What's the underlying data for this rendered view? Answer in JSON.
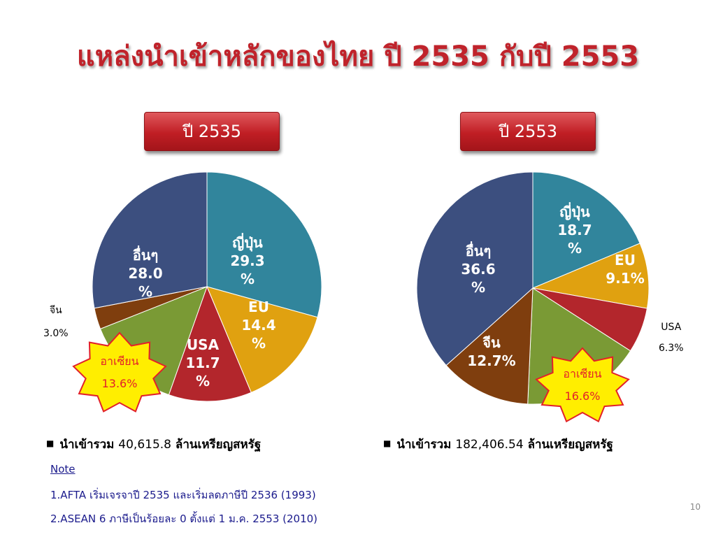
{
  "title": "แหล่งนำเข้าหลักของไทย ปี 2535 กับปี 2553",
  "boxes": {
    "left": "ปี 2535",
    "right": "ปี 2553"
  },
  "totals": {
    "left": {
      "label": "นำเข้ารวม",
      "value": "40,615.8",
      "unit": "ล้านเหรียญสหรัฐ"
    },
    "right": {
      "label": "นำเข้ารวม",
      "value": "182,406.54",
      "unit": "ล้านเหรียญสหรัฐ"
    }
  },
  "notes": {
    "title": "Note",
    "line1": "1.AFTA เริ่มเจรจาปี 2535 และเริ่มลดภาษีปี 2536 (1993)",
    "line2": "2.ASEAN 6 ภาษีเป็นร้อยละ 0 ตั้งแต่ 1 ม.ค. 2553 (2010)"
  },
  "page_number": "10",
  "colors": {
    "japan": "#31859c",
    "eu": "#e0a110",
    "usa": "#b3262c",
    "asean": "#7a9a35",
    "china": "#7f3e0e",
    "others": "#3c4f7f",
    "star_fill": "#ffee00",
    "star_stroke": "#e2202a"
  },
  "chart_data": [
    {
      "type": "pie",
      "year": "ปี 2535",
      "slices": [
        {
          "name": "ญี่ปุ่น",
          "value": 29.3,
          "label": "29.3 %",
          "color_key": "japan"
        },
        {
          "name": "EU",
          "value": 14.4,
          "label": "14.4 %",
          "color_key": "eu"
        },
        {
          "name": "USA",
          "value": 11.7,
          "label": "11.7 %",
          "color_key": "usa"
        },
        {
          "name": "อาเซียน",
          "value": 13.6,
          "label": "13.6%",
          "color_key": "asean"
        },
        {
          "name": "จีน",
          "value": 3.0,
          "label": "3.0%",
          "color_key": "china"
        },
        {
          "name": "อื่นๆ",
          "value": 28.0,
          "label": "28.0 %",
          "color_key": "others"
        }
      ]
    },
    {
      "type": "pie",
      "year": "ปี 2553",
      "slices": [
        {
          "name": "ญี่ปุ่น",
          "value": 18.7,
          "label": "18.7 %",
          "color_key": "japan"
        },
        {
          "name": "EU",
          "value": 9.1,
          "label": "9.1%",
          "color_key": "eu"
        },
        {
          "name": "USA",
          "value": 6.3,
          "label": "6.3%",
          "color_key": "usa"
        },
        {
          "name": "อาเซียน",
          "value": 16.6,
          "label": "16.6%",
          "color_key": "asean"
        },
        {
          "name": "จีน",
          "value": 12.7,
          "label": "12.7%",
          "color_key": "china"
        },
        {
          "name": "อื่นๆ",
          "value": 36.6,
          "label": "36.6 %",
          "color_key": "others"
        }
      ]
    }
  ]
}
